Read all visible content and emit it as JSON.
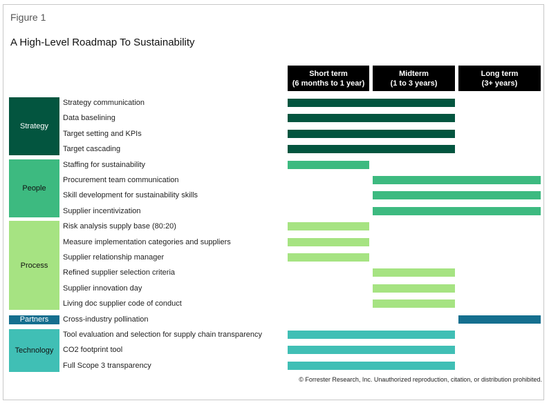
{
  "figure_label": "Figure 1",
  "title": "A High-Level Roadmap To Sustainability",
  "columns": [
    {
      "line1": "Short term",
      "line2": "(6 months to 1 year)"
    },
    {
      "line1": "Midterm",
      "line2": "(1 to 3 years)"
    },
    {
      "line1": "Long term",
      "line2": "(3+ years)"
    }
  ],
  "categories": [
    {
      "name": "Strategy",
      "color": "#03553f",
      "text_color": "#ffffff",
      "items": [
        {
          "label": "Strategy communication",
          "span": [
            "Short term",
            "Midterm"
          ]
        },
        {
          "label": "Data baselining",
          "span": [
            "Short term",
            "Midterm"
          ]
        },
        {
          "label": "Target setting and KPIs",
          "span": [
            "Short term",
            "Midterm"
          ]
        },
        {
          "label": "Target cascading",
          "span": [
            "Short term",
            "Midterm"
          ]
        }
      ]
    },
    {
      "name": "People",
      "color": "#3dba80",
      "text_color": "#111111",
      "items": [
        {
          "label": "Staffing for sustainability",
          "span": [
            "Short term",
            "Short term"
          ]
        },
        {
          "label": "Procurement team communication",
          "span": [
            "Midterm",
            "Long term"
          ]
        },
        {
          "label": "Skill development for sustainability skills",
          "span": [
            "Midterm",
            "Long term"
          ]
        },
        {
          "label": "Supplier incentivization",
          "span": [
            "Midterm",
            "Long term"
          ]
        }
      ]
    },
    {
      "name": "Process",
      "color": "#a6e382",
      "text_color": "#111111",
      "items": [
        {
          "label": "Risk analysis supply base (80:20)",
          "span": [
            "Short term",
            "Short term"
          ]
        },
        {
          "label": "Measure implementation categories and suppliers",
          "span": [
            "Short term",
            "Short term"
          ]
        },
        {
          "label": "Supplier relationship manager",
          "span": [
            "Short term",
            "Short term"
          ]
        },
        {
          "label": "Refined supplier selection criteria",
          "span": [
            "Midterm",
            "Midterm"
          ]
        },
        {
          "label": "Supplier innovation day",
          "span": [
            "Midterm",
            "Midterm"
          ]
        },
        {
          "label": "Living doc supplier code of conduct",
          "span": [
            "Midterm",
            "Midterm"
          ]
        }
      ]
    },
    {
      "name": "Partners",
      "color": "#156f8f",
      "text_color": "#ffffff",
      "items": [
        {
          "label": "Cross-industry pollination",
          "span": [
            "Long term",
            "Long term"
          ]
        }
      ]
    },
    {
      "name": "Technology",
      "color": "#40bfb5",
      "text_color": "#111111",
      "items": [
        {
          "label": "Tool evaluation and selection for supply chain transparency",
          "span": [
            "Short term",
            "Midterm"
          ]
        },
        {
          "label": "CO2 footprint tool",
          "span": [
            "Short term",
            "Midterm"
          ]
        },
        {
          "label": "Full Scope 3 transparency",
          "span": [
            "Short term",
            "Midterm"
          ]
        }
      ]
    }
  ],
  "copyright": "© Forrester Research, Inc. Unauthorized reproduction, citation, or distribution prohibited."
}
